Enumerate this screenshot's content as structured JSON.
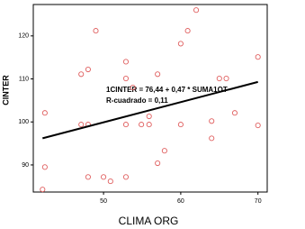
{
  "chart_data": {
    "type": "scatter",
    "xlabel": "CLIMA ORG",
    "ylabel": "CINTER",
    "annotations": [
      "1CINTER = 76,44 + 0,47 * SUMA1OT",
      "R-cuadrado = 0,11"
    ],
    "x": [
      42.1,
      42.4,
      42.4,
      47.1,
      48.0,
      49.0,
      47.1,
      48.0,
      48.0,
      50.0,
      50.9,
      52.9,
      52.9,
      52.9,
      53.8,
      52.9,
      54.9,
      55.9,
      55.9,
      57.0,
      57.0,
      57.9,
      60.0,
      60.0,
      60.9,
      62.0,
      64.0,
      64.0,
      65.0,
      65.9,
      67.0,
      70.0,
      70.0
    ],
    "values": [
      84.3,
      89.5,
      102.1,
      111.1,
      112.2,
      121.2,
      99.4,
      99.4,
      87.2,
      87.2,
      86.2,
      87.2,
      114.0,
      110.1,
      108.0,
      99.4,
      99.4,
      101.3,
      99.4,
      111.1,
      90.4,
      93.3,
      118.2,
      99.4,
      121.2,
      126.0,
      100.2,
      96.2,
      110.1,
      110.1,
      102.1,
      115.1,
      99.2
    ],
    "color": "#e06060",
    "fit_line": {
      "x": [
        42.1,
        70.0
      ],
      "values": [
        96.2,
        109.3
      ],
      "color": "#000000"
    },
    "xlim": [
      40.9,
      71.2
    ],
    "ylim": [
      83.7,
      127.3
    ],
    "xticks": [
      50,
      60,
      70
    ],
    "yticks": [
      90,
      100,
      110,
      120
    ]
  }
}
